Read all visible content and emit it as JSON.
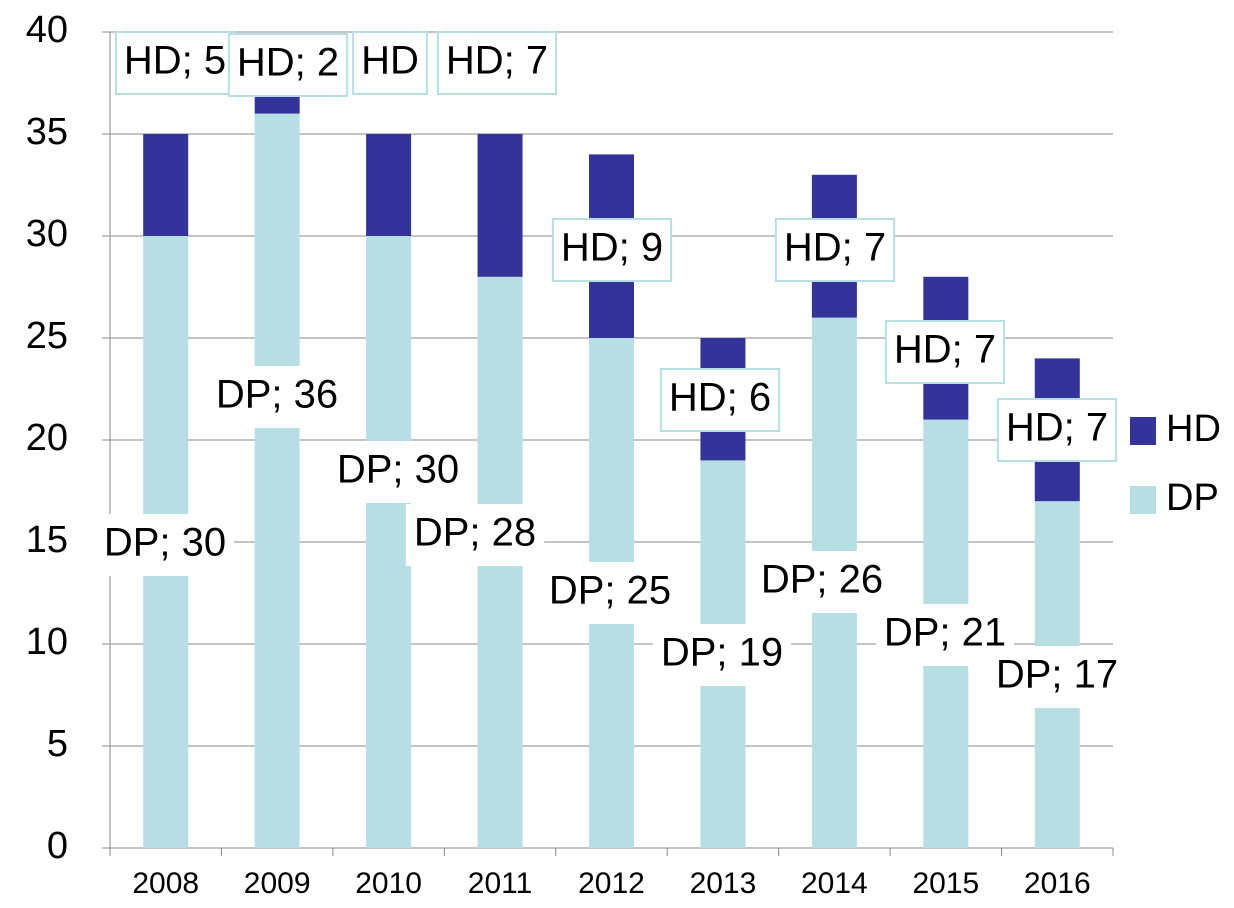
{
  "chart_data": {
    "type": "bar",
    "stacked": true,
    "categories": [
      "2008",
      "2009",
      "2010",
      "2011",
      "2012",
      "2013",
      "2014",
      "2015",
      "2016"
    ],
    "series": [
      {
        "name": "DP",
        "color": "#b7dfe3",
        "values": [
          30,
          36,
          30,
          28,
          25,
          19,
          26,
          21,
          17
        ],
        "value_labels": [
          "DP; 30",
          "DP; 36",
          "DP; 30",
          "DP; 28",
          "DP; 25",
          "DP; 19",
          "DP; 26",
          "DP; 21",
          "DP; 17"
        ]
      },
      {
        "name": "HD",
        "color": "#333399",
        "values": [
          5,
          2,
          5,
          7,
          9,
          6,
          7,
          7,
          7
        ],
        "value_labels": [
          "HD; 5",
          "HD; 2",
          "HD",
          "HD; 7",
          "HD; 9",
          "HD; 6",
          "HD; 7",
          "HD; 7",
          "HD; 7"
        ]
      }
    ],
    "ylim": [
      0,
      40
    ],
    "yticks": [
      0,
      5,
      10,
      15,
      20,
      25,
      30,
      35,
      40
    ],
    "grid": true,
    "legend": "right"
  }
}
